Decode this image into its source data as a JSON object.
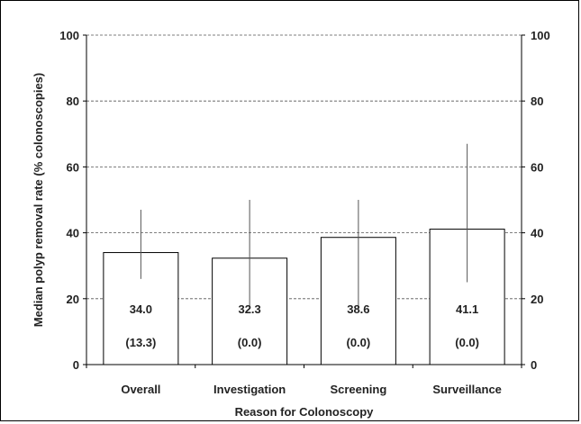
{
  "chart_data": {
    "type": "bar",
    "title": "",
    "xlabel": "Reason for Colonoscopy",
    "ylabel": "Median polyp removal rate (% colonoscopies)",
    "ylim": [
      0,
      100
    ],
    "yticks": [
      0,
      20,
      40,
      60,
      80,
      100
    ],
    "ytick_labels": [
      "0",
      "20",
      "40",
      "60",
      "80",
      "100"
    ],
    "secondary_y_axis": true,
    "grid": "horizontal dashed",
    "categories": [
      "Overall",
      "Investigation",
      "Screening",
      "Surveillance"
    ],
    "values": [
      34.0,
      32.3,
      38.6,
      41.1
    ],
    "error_low": [
      26,
      17,
      17,
      25
    ],
    "error_high": [
      47,
      50,
      50,
      67
    ],
    "value_labels": [
      "34.0",
      "32.3",
      "38.6",
      "41.1"
    ],
    "secondary_labels": [
      "(13.3)",
      "(0.0)",
      "(0.0)",
      "(0.0)"
    ],
    "colors": {
      "bar_fill": "#ffffff",
      "bar_stroke": "#000000",
      "error_bar": "#555555",
      "grid": "#555555",
      "text": "#222222"
    }
  }
}
